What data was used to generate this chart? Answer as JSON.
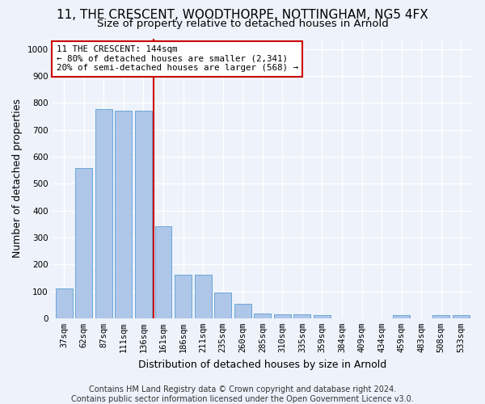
{
  "title": "11, THE CRESCENT, WOODTHORPE, NOTTINGHAM, NG5 4FX",
  "subtitle": "Size of property relative to detached houses in Arnold",
  "xlabel": "Distribution of detached houses by size in Arnold",
  "ylabel": "Number of detached properties",
  "footer_line1": "Contains HM Land Registry data © Crown copyright and database right 2024.",
  "footer_line2": "Contains public sector information licensed under the Open Government Licence v3.0.",
  "categories": [
    "37sqm",
    "62sqm",
    "87sqm",
    "111sqm",
    "136sqm",
    "161sqm",
    "186sqm",
    "211sqm",
    "235sqm",
    "260sqm",
    "285sqm",
    "310sqm",
    "335sqm",
    "359sqm",
    "384sqm",
    "409sqm",
    "434sqm",
    "459sqm",
    "483sqm",
    "508sqm",
    "533sqm"
  ],
  "values": [
    112,
    557,
    778,
    770,
    770,
    343,
    163,
    163,
    97,
    52,
    18,
    15,
    15,
    10,
    0,
    0,
    0,
    10,
    0,
    10,
    10
  ],
  "bar_color": "#aec6e8",
  "bar_edge_color": "#5a9fd4",
  "vline_x": 4.5,
  "vline_color": "#cc0000",
  "annotation_text": "11 THE CRESCENT: 144sqm\n← 80% of detached houses are smaller (2,341)\n20% of semi-detached houses are larger (568) →",
  "annotation_box_color": "#ffffff",
  "annotation_box_edge": "#cc0000",
  "ylim": [
    0,
    1040
  ],
  "yticks": [
    0,
    100,
    200,
    300,
    400,
    500,
    600,
    700,
    800,
    900,
    1000
  ],
  "background_color": "#eef2fb",
  "axes_background": "#eef2fb",
  "grid_color": "#ffffff",
  "title_fontsize": 11,
  "subtitle_fontsize": 9.5,
  "label_fontsize": 9,
  "tick_fontsize": 7.5,
  "footer_fontsize": 7
}
